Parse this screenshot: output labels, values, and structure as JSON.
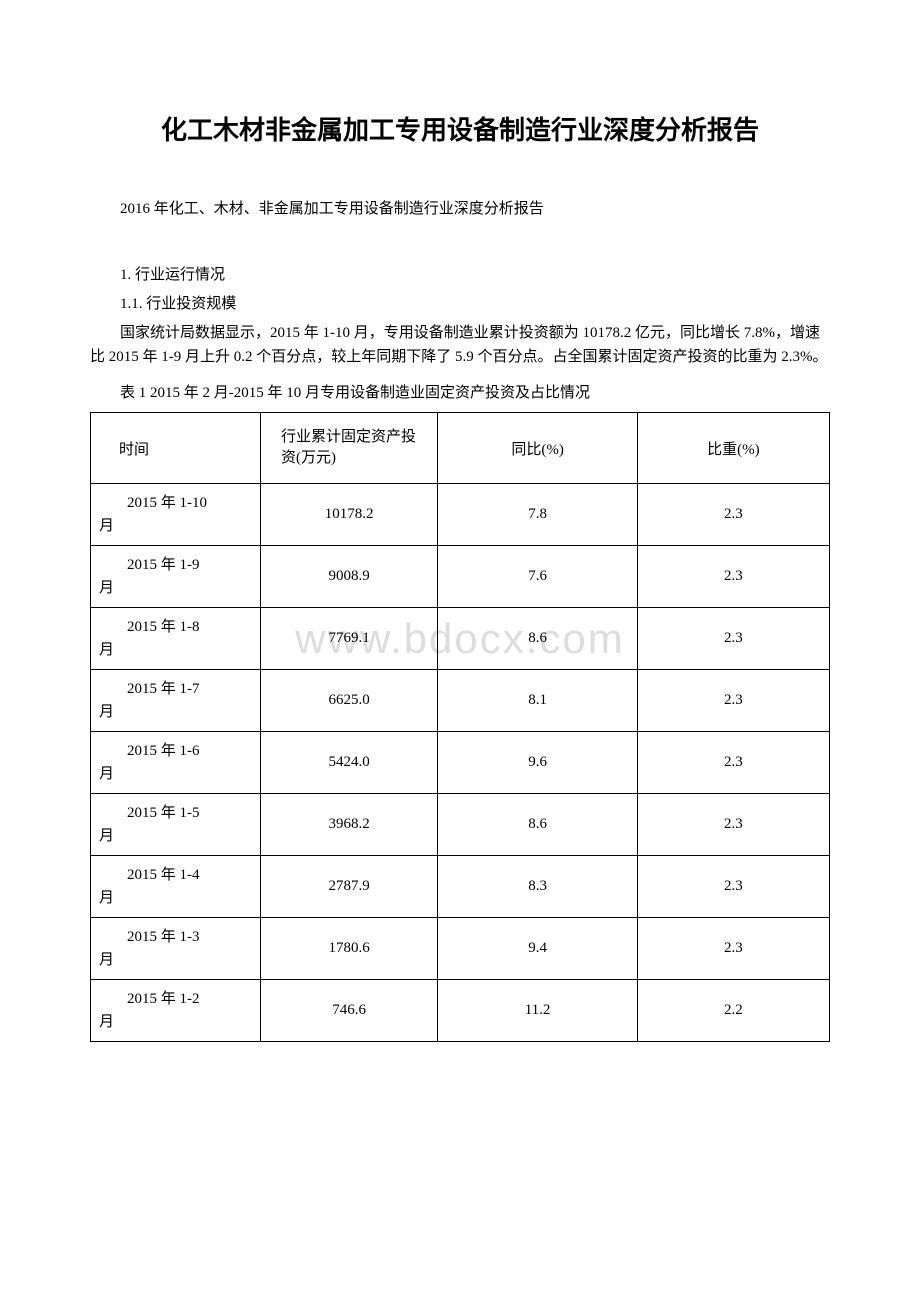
{
  "document": {
    "title": "化工木材非金属加工专用设备制造行业深度分析报告",
    "subtitle": "2016 年化工、木材、非金属加工专用设备制造行业深度分析报告",
    "section1_heading": "1. 行业运行情况",
    "section1_1_heading": "1.1. 行业投资规模",
    "body_paragraph": "国家统计局数据显示，2015 年 1-10 月，专用设备制造业累计投资额为 10178.2 亿元，同比增长 7.8%，增速比 2015 年 1-9 月上升 0.2 个百分点，较上年同期下降了 5.9 个百分点。占全国累计固定资产投资的比重为 2.3%。",
    "table_caption": "表 1 2015 年 2 月-2015 年 10 月专用设备制造业固定资产投资及占比情况",
    "watermark_text": "www.bdocx.com"
  },
  "table": {
    "columns": [
      {
        "label": "时间",
        "align": "left"
      },
      {
        "label": "行业累计固定资产投资(万元)",
        "align": "left"
      },
      {
        "label": "同比(%)",
        "align": "center"
      },
      {
        "label": "比重(%)",
        "align": "center"
      }
    ],
    "rows": [
      {
        "time_line1": "2015 年 1-10",
        "time_line2": "月",
        "investment": "10178.2",
        "yoy": "7.8",
        "ratio": "2.3"
      },
      {
        "time_line1": "2015 年 1-9",
        "time_line2": "月",
        "investment": "9008.9",
        "yoy": "7.6",
        "ratio": "2.3"
      },
      {
        "time_line1": "2015 年 1-8",
        "time_line2": "月",
        "investment": "7769.1",
        "yoy": "8.6",
        "ratio": "2.3"
      },
      {
        "time_line1": "2015 年 1-7",
        "time_line2": "月",
        "investment": "6625.0",
        "yoy": "8.1",
        "ratio": "2.3"
      },
      {
        "time_line1": "2015 年 1-6",
        "time_line2": "月",
        "investment": "5424.0",
        "yoy": "9.6",
        "ratio": "2.3"
      },
      {
        "time_line1": "2015 年 1-5",
        "time_line2": "月",
        "investment": "3968.2",
        "yoy": "8.6",
        "ratio": "2.3"
      },
      {
        "time_line1": "2015 年 1-4",
        "time_line2": "月",
        "investment": "2787.9",
        "yoy": "8.3",
        "ratio": "2.3"
      },
      {
        "time_line1": "2015 年 1-3",
        "time_line2": "月",
        "investment": "1780.6",
        "yoy": "9.4",
        "ratio": "2.3"
      },
      {
        "time_line1": "2015 年 1-2",
        "time_line2": "月",
        "investment": "746.6",
        "yoy": "11.2",
        "ratio": "2.2"
      }
    ],
    "border_color": "#000000",
    "background_color": "#ffffff",
    "font_size": 15
  }
}
